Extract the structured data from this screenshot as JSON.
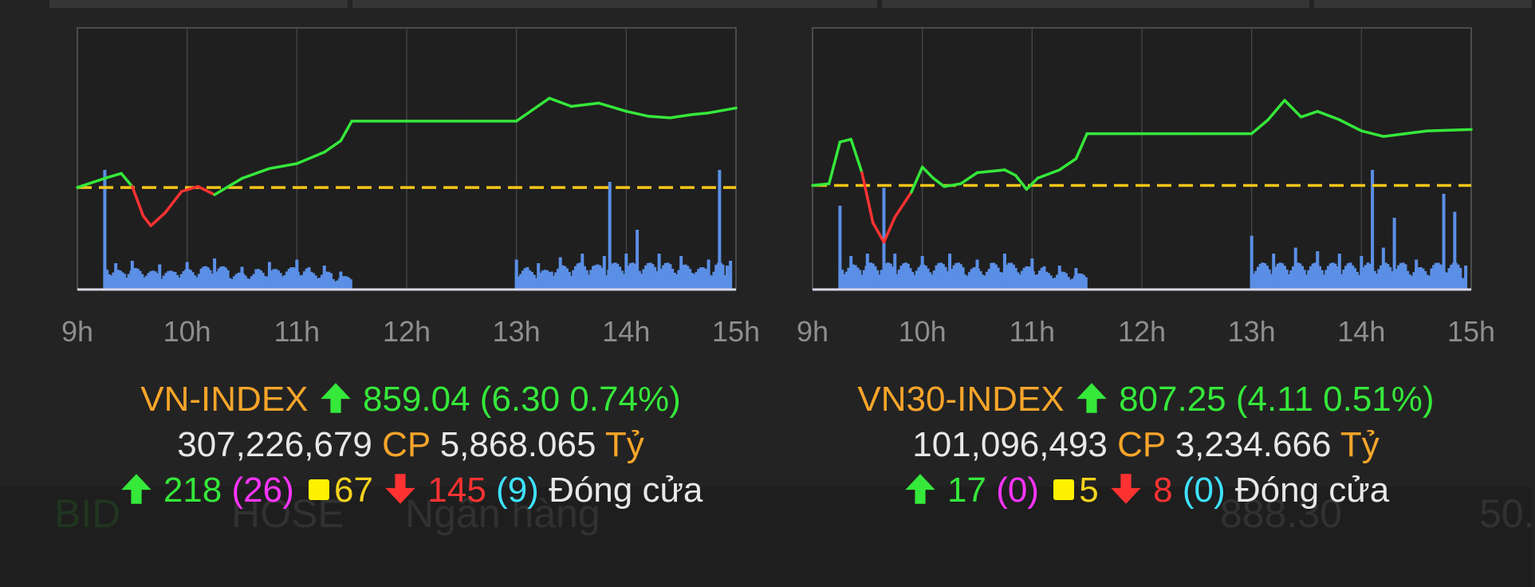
{
  "colors": {
    "up": "#35e83a",
    "down": "#ff3232",
    "reference": "#f5c518",
    "volume": "#5b8fe6",
    "orange": "#f7a52a",
    "magenta": "#ff35ff",
    "cyan": "#3fe2ff",
    "white": "#e8e8e8",
    "yellow": "#f5d31d"
  },
  "icons": {
    "up": "arrow-up-icon",
    "down": "arrow-down-icon",
    "unchanged": "yellow-square-icon"
  },
  "panels": [
    {
      "id": "vn-index",
      "name": "VN-INDEX",
      "value": "859.04",
      "change": "(6.30 0.74%)",
      "volume": "307,226,679",
      "volume_unit": "CP",
      "turnover": "5,868.065",
      "turnover_unit": "Tỷ",
      "up_count": "218",
      "ceiling_count": "(26)",
      "unchanged_count": "67",
      "down_count": "145",
      "floor_count": "(9)",
      "status": "Đóng cửa"
    },
    {
      "id": "vn30-index",
      "name": "VN30-INDEX",
      "value": "807.25",
      "change": "(4.11 0.51%)",
      "volume": "101,096,493",
      "volume_unit": "CP",
      "turnover": "3,234.666",
      "turnover_unit": "Tỷ",
      "up_count": "17",
      "ceiling_count": "(0)",
      "unchanged_count": "5",
      "down_count": "8",
      "floor_count": "(0)",
      "status": "Đóng cửa"
    }
  ],
  "chart_data": [
    {
      "type": "line",
      "title": "VN-INDEX",
      "x_ticks": [
        "9h",
        "10h",
        "11h",
        "12h",
        "13h",
        "14h",
        "15h"
      ],
      "reference": 852.74,
      "ylim": [
        846.5,
        862.5
      ],
      "price": [
        [
          9.0,
          852.74
        ],
        [
          9.25,
          853.3
        ],
        [
          9.4,
          853.6
        ],
        [
          9.5,
          852.8
        ],
        [
          9.6,
          851.0
        ],
        [
          9.67,
          850.4
        ],
        [
          9.8,
          851.2
        ],
        [
          9.95,
          852.5
        ],
        [
          10.1,
          852.8
        ],
        [
          10.25,
          852.3
        ],
        [
          10.5,
          853.3
        ],
        [
          10.75,
          853.9
        ],
        [
          11.0,
          854.2
        ],
        [
          11.25,
          854.9
        ],
        [
          11.4,
          855.6
        ],
        [
          11.5,
          856.8
        ],
        [
          12.0,
          856.8
        ],
        [
          12.5,
          856.8
        ],
        [
          13.0,
          856.8
        ],
        [
          13.15,
          857.5
        ],
        [
          13.3,
          858.2
        ],
        [
          13.5,
          857.7
        ],
        [
          13.75,
          857.9
        ],
        [
          14.0,
          857.4
        ],
        [
          14.2,
          857.1
        ],
        [
          14.4,
          857.0
        ],
        [
          14.6,
          857.2
        ],
        [
          14.75,
          857.3
        ],
        [
          15.0,
          857.6
        ]
      ],
      "volume_rel": [
        [
          9.25,
          1.0
        ],
        [
          9.35,
          0.22
        ],
        [
          9.5,
          0.24
        ],
        [
          9.75,
          0.21
        ],
        [
          10.0,
          0.23
        ],
        [
          10.25,
          0.26
        ],
        [
          10.5,
          0.19
        ],
        [
          10.75,
          0.23
        ],
        [
          11.0,
          0.25
        ],
        [
          11.25,
          0.2
        ],
        [
          11.4,
          0.15
        ],
        [
          13.0,
          0.25
        ],
        [
          13.2,
          0.22
        ],
        [
          13.4,
          0.27
        ],
        [
          13.6,
          0.3
        ],
        [
          13.8,
          0.28
        ],
        [
          13.85,
          0.9
        ],
        [
          14.0,
          0.3
        ],
        [
          14.1,
          0.5
        ],
        [
          14.3,
          0.3
        ],
        [
          14.5,
          0.28
        ],
        [
          14.75,
          0.25
        ],
        [
          14.85,
          1.0
        ],
        [
          14.92,
          0.2
        ],
        [
          14.95,
          0.24
        ]
      ]
    },
    {
      "type": "line",
      "title": "VN30-INDEX",
      "x_ticks": [
        "9h",
        "10h",
        "11h",
        "12h",
        "13h",
        "14h",
        "15h"
      ],
      "reference": 803.14,
      "ylim": [
        799.4,
        808.8
      ],
      "price": [
        [
          9.0,
          803.14
        ],
        [
          9.15,
          803.2
        ],
        [
          9.25,
          804.7
        ],
        [
          9.35,
          804.8
        ],
        [
          9.45,
          803.6
        ],
        [
          9.55,
          801.8
        ],
        [
          9.65,
          801.1
        ],
        [
          9.75,
          802.0
        ],
        [
          9.9,
          802.9
        ],
        [
          10.0,
          803.8
        ],
        [
          10.1,
          803.4
        ],
        [
          10.2,
          803.1
        ],
        [
          10.35,
          803.2
        ],
        [
          10.5,
          803.6
        ],
        [
          10.75,
          803.7
        ],
        [
          10.85,
          803.5
        ],
        [
          10.95,
          803.0
        ],
        [
          11.05,
          803.4
        ],
        [
          11.25,
          803.7
        ],
        [
          11.4,
          804.1
        ],
        [
          11.5,
          805.0
        ],
        [
          12.0,
          805.0
        ],
        [
          12.5,
          805.0
        ],
        [
          13.0,
          805.0
        ],
        [
          13.15,
          805.5
        ],
        [
          13.3,
          806.2
        ],
        [
          13.45,
          805.6
        ],
        [
          13.6,
          805.8
        ],
        [
          13.8,
          805.5
        ],
        [
          14.0,
          805.1
        ],
        [
          14.2,
          804.9
        ],
        [
          14.4,
          805.0
        ],
        [
          14.6,
          805.1
        ],
        [
          15.0,
          805.15
        ]
      ],
      "volume_rel": [
        [
          9.25,
          0.7
        ],
        [
          9.35,
          0.28
        ],
        [
          9.5,
          0.3
        ],
        [
          9.65,
          0.85
        ],
        [
          9.75,
          0.3
        ],
        [
          10.0,
          0.28
        ],
        [
          10.25,
          0.3
        ],
        [
          10.5,
          0.25
        ],
        [
          10.75,
          0.3
        ],
        [
          11.0,
          0.26
        ],
        [
          11.25,
          0.2
        ],
        [
          11.4,
          0.18
        ],
        [
          13.0,
          0.45
        ],
        [
          13.2,
          0.3
        ],
        [
          13.4,
          0.35
        ],
        [
          13.6,
          0.32
        ],
        [
          13.8,
          0.3
        ],
        [
          14.0,
          0.28
        ],
        [
          14.1,
          1.0
        ],
        [
          14.2,
          0.35
        ],
        [
          14.3,
          0.6
        ],
        [
          14.5,
          0.25
        ],
        [
          14.75,
          0.8
        ],
        [
          14.85,
          0.65
        ],
        [
          14.95,
          0.2
        ]
      ]
    }
  ]
}
